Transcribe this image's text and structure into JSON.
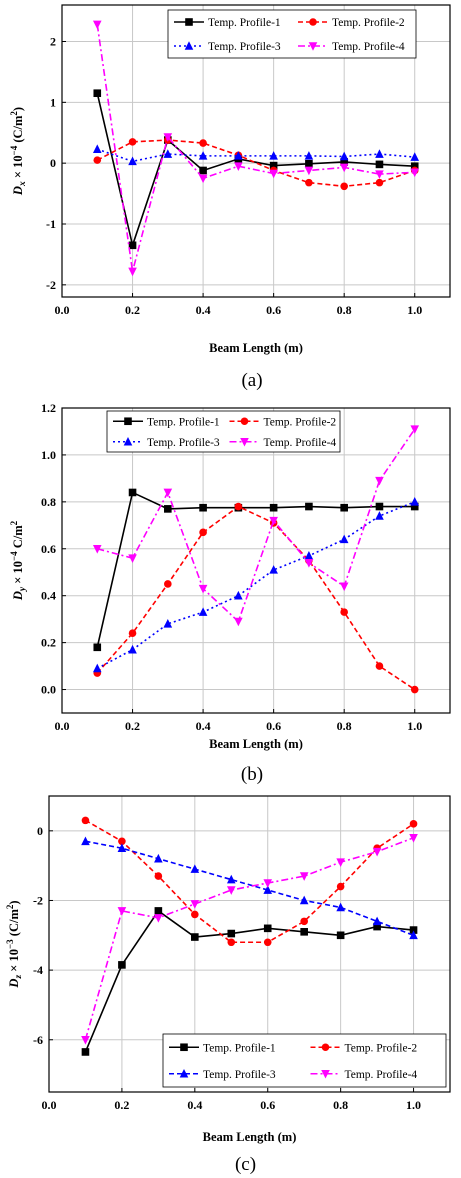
{
  "chart_data": [
    {
      "type": "line",
      "caption": "(a)",
      "ylabel_main": "D",
      "ylabel_sub": "x",
      "ylabel_rest": " × 10",
      "ylabel_exp": "−4",
      "ylabel_unit": " (C/m",
      "ylabel_unit_exp": "2",
      "ylabel_close": ")",
      "xlabel": "Beam Length (m)",
      "xlim": [
        0.0,
        1.1
      ],
      "ylim": [
        -2.2,
        2.6
      ],
      "x_ticks": [
        0.0,
        0.2,
        0.4,
        0.6,
        0.8,
        1.0
      ],
      "x_tick_labels": [
        "0.0",
        "0.2",
        "0.4",
        "0.6",
        "0.8",
        "1.0"
      ],
      "y_ticks": [
        -2,
        -1,
        0,
        1,
        2
      ],
      "y_tick_labels": [
        "-2",
        "-1",
        "0",
        "1",
        "2"
      ],
      "grid": true,
      "legend_position": "top",
      "legend_columns": 2,
      "x": [
        0.1,
        0.2,
        0.3,
        0.4,
        0.5,
        0.6,
        0.7,
        0.8,
        0.9,
        1.0
      ],
      "series": [
        {
          "name": "Temp. Profile-1",
          "color": "#000000",
          "dash": "solid",
          "marker": "square",
          "values": [
            1.15,
            -1.35,
            0.38,
            -0.12,
            0.07,
            -0.04,
            -0.01,
            0.02,
            -0.02,
            -0.05
          ]
        },
        {
          "name": "Temp. Profile-2",
          "color": "#ff0000",
          "dash": "dash",
          "marker": "circle",
          "values": [
            0.05,
            0.35,
            0.38,
            0.33,
            0.13,
            -0.12,
            -0.32,
            -0.38,
            -0.32,
            -0.12
          ]
        },
        {
          "name": "Temp. Profile-3",
          "color": "#0000ff",
          "dash": "dot",
          "marker": "triangle-up",
          "values": [
            0.23,
            0.03,
            0.15,
            0.12,
            0.12,
            0.12,
            0.12,
            0.11,
            0.15,
            0.1
          ]
        },
        {
          "name": "Temp. Profile-4",
          "color": "#ff00ff",
          "dash": "dashdot",
          "marker": "triangle-down",
          "values": [
            2.28,
            -1.78,
            0.43,
            -0.25,
            -0.05,
            -0.17,
            -0.12,
            -0.07,
            -0.18,
            -0.15
          ]
        }
      ]
    },
    {
      "type": "line",
      "caption": "(b)",
      "ylabel_main": "D",
      "ylabel_sub": "y",
      "ylabel_rest": " × 10",
      "ylabel_exp": "−4",
      "ylabel_unit": " C/m",
      "ylabel_unit_exp": "2",
      "ylabel_close": "",
      "xlabel": "Beam Length (m)",
      "xlim": [
        0.0,
        1.1
      ],
      "ylim": [
        -0.1,
        1.2
      ],
      "x_ticks": [
        0.0,
        0.2,
        0.4,
        0.6,
        0.8,
        1.0
      ],
      "x_tick_labels": [
        "0.0",
        "0.2",
        "0.4",
        "0.6",
        "0.8",
        "1.0"
      ],
      "y_ticks": [
        0.0,
        0.2,
        0.4,
        0.6,
        0.8,
        1.0,
        1.2
      ],
      "y_tick_labels": [
        "0.0",
        "0.2",
        "0.4",
        "0.6",
        "0.8",
        "1.0",
        "1.2"
      ],
      "grid": true,
      "legend_position": "top",
      "legend_columns": 2,
      "x": [
        0.1,
        0.2,
        0.3,
        0.4,
        0.5,
        0.6,
        0.7,
        0.8,
        0.9,
        1.0
      ],
      "series": [
        {
          "name": "Temp. Profile-1",
          "color": "#000000",
          "dash": "solid",
          "marker": "square",
          "values": [
            0.18,
            0.84,
            0.77,
            0.775,
            0.775,
            0.775,
            0.78,
            0.775,
            0.78,
            0.78
          ]
        },
        {
          "name": "Temp. Profile-2",
          "color": "#ff0000",
          "dash": "dash",
          "marker": "circle",
          "values": [
            0.07,
            0.24,
            0.45,
            0.67,
            0.78,
            0.71,
            0.55,
            0.33,
            0.1,
            0.0
          ]
        },
        {
          "name": "Temp. Profile-3",
          "color": "#0000ff",
          "dash": "dot",
          "marker": "triangle-up",
          "values": [
            0.09,
            0.17,
            0.28,
            0.33,
            0.4,
            0.51,
            0.57,
            0.64,
            0.74,
            0.8
          ]
        },
        {
          "name": "Temp. Profile-4",
          "color": "#ff00ff",
          "dash": "dashdot",
          "marker": "triangle-down",
          "values": [
            0.6,
            0.56,
            0.84,
            0.43,
            0.29,
            0.72,
            0.54,
            0.44,
            0.89,
            1.11
          ]
        }
      ]
    },
    {
      "type": "line",
      "caption": "(c)",
      "ylabel_main": "D",
      "ylabel_sub": "z",
      "ylabel_rest": " × 10",
      "ylabel_exp": "−3",
      "ylabel_unit": " (C/m",
      "ylabel_unit_exp": "2",
      "ylabel_close": ")",
      "xlabel": "Beam Length (m)",
      "xlim": [
        0.0,
        1.1
      ],
      "ylim": [
        -7.5,
        1.0
      ],
      "x_ticks": [
        0.0,
        0.2,
        0.4,
        0.6,
        0.8,
        1.0
      ],
      "x_tick_labels": [
        "0.0",
        "0.2",
        "0.4",
        "0.6",
        "0.8",
        "1.0"
      ],
      "y_ticks": [
        -6,
        -4,
        -2,
        0
      ],
      "y_tick_labels": [
        "-6",
        "-4",
        "-2",
        "0"
      ],
      "grid": true,
      "legend_position": "bottom-right",
      "legend_columns": 2,
      "x": [
        0.1,
        0.2,
        0.3,
        0.4,
        0.5,
        0.6,
        0.7,
        0.8,
        0.9,
        1.0
      ],
      "series": [
        {
          "name": "Temp. Profile-1",
          "color": "#000000",
          "dash": "solid",
          "marker": "square",
          "values": [
            -6.35,
            -3.85,
            -2.3,
            -3.05,
            -2.95,
            -2.8,
            -2.9,
            -3.0,
            -2.75,
            -2.85
          ]
        },
        {
          "name": "Temp. Profile-2",
          "color": "#ff0000",
          "dash": "dash",
          "marker": "circle",
          "values": [
            0.3,
            -0.3,
            -1.3,
            -2.4,
            -3.2,
            -3.2,
            -2.6,
            -1.6,
            -0.5,
            0.2
          ]
        },
        {
          "name": "Temp. Profile-3",
          "color": "#0000ff",
          "dash": "dash",
          "marker": "triangle-up",
          "values": [
            -0.3,
            -0.5,
            -0.8,
            -1.1,
            -1.4,
            -1.7,
            -2.0,
            -2.2,
            -2.6,
            -3.0
          ]
        },
        {
          "name": "Temp. Profile-4",
          "color": "#ff00ff",
          "dash": "dashdot",
          "marker": "triangle-down",
          "values": [
            -6.0,
            -2.3,
            -2.5,
            -2.1,
            -1.7,
            -1.5,
            -1.3,
            -0.9,
            -0.6,
            -0.2
          ]
        }
      ]
    }
  ]
}
